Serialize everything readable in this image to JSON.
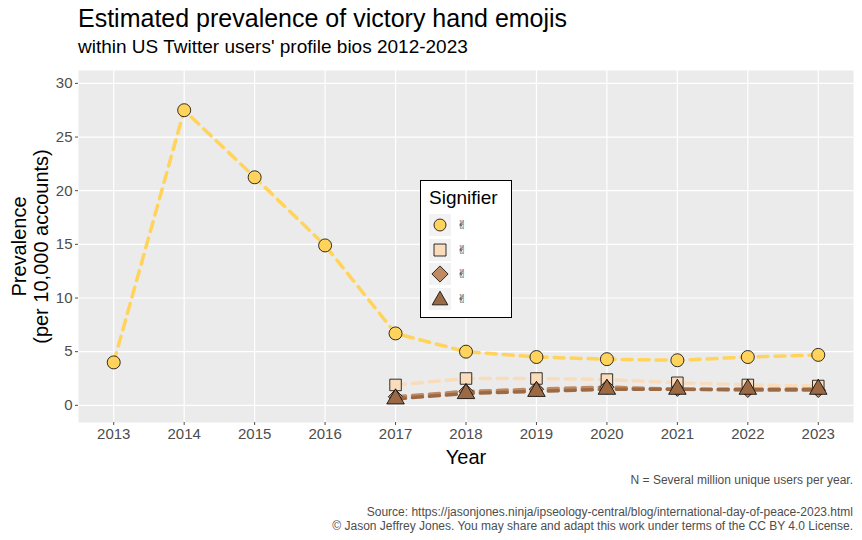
{
  "chart_data": {
    "type": "line",
    "title": "Estimated prevalence of victory hand emojis",
    "subtitle": "within US Twitter users' profile bios 2012-2023",
    "x_label": "Year",
    "y_label": "Prevalence\n(per 10,000 accounts)",
    "x": [
      2013,
      2014,
      2015,
      2016,
      2017,
      2018,
      2019,
      2020,
      2021,
      2022,
      2023
    ],
    "series": [
      {
        "name": "✌",
        "color": "#ffd35c",
        "marker": "circle",
        "line_style": "dashed",
        "values": [
          4.0,
          27.5,
          21.25,
          14.9,
          6.7,
          5.0,
          4.5,
          4.3,
          4.2,
          4.5,
          4.7
        ]
      },
      {
        "name": "✌",
        "color": "#f9dcbc",
        "marker": "square",
        "line_style": "dashed",
        "values": [
          null,
          null,
          null,
          null,
          1.9,
          2.5,
          2.5,
          2.4,
          2.1,
          1.9,
          1.8
        ]
      },
      {
        "name": "✌",
        "color": "#c08b62",
        "marker": "diamond",
        "line_style": "dashed",
        "values": [
          null,
          null,
          null,
          null,
          0.8,
          1.3,
          1.5,
          1.7,
          1.5,
          1.4,
          1.4
        ]
      },
      {
        "name": "✌",
        "color": "#9b6a45",
        "marker": "triangle",
        "line_style": "dashed",
        "values": [
          null,
          null,
          null,
          null,
          0.6,
          1.1,
          1.3,
          1.5,
          1.5,
          1.5,
          1.5
        ]
      }
    ],
    "xlim": [
      2012.5,
      2023.5
    ],
    "ylim": [
      -1.6,
      31.2
    ],
    "xticks": [
      2013,
      2014,
      2015,
      2016,
      2017,
      2018,
      2019,
      2020,
      2021,
      2022,
      2023
    ],
    "yticks": [
      0,
      5,
      10,
      15,
      20,
      25,
      30
    ],
    "grid": true,
    "legend_title": "Signifier",
    "caption": [
      "N = Several million unique users per year.",
      "Source: https://jasonjones.ninja/ipseology-central/blog/international-day-of-peace-2023.html",
      "© Jason Jeffrey Jones. You may share and adapt this work under terms of the CC BY 4.0 License."
    ]
  }
}
